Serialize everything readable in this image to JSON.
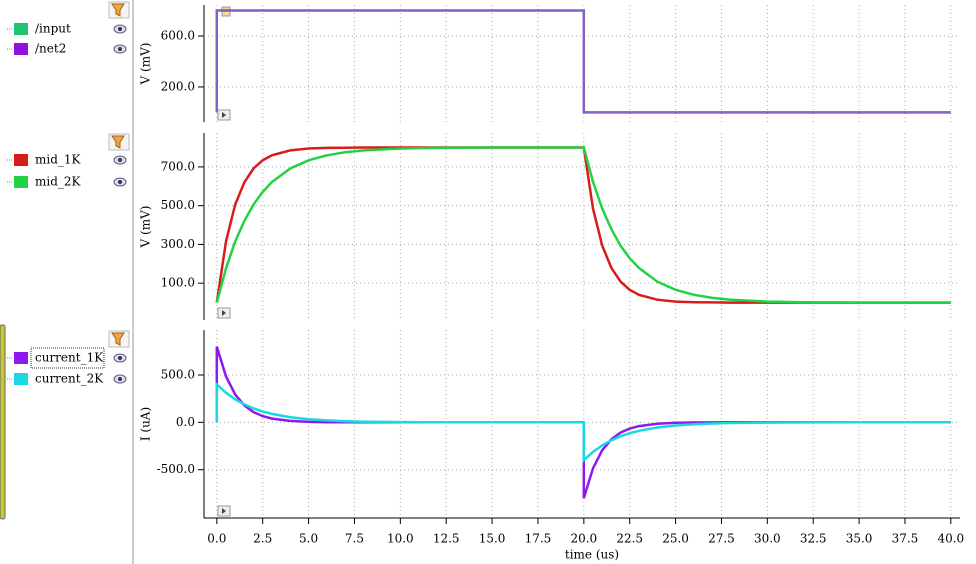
{
  "chart_data": [
    {
      "type": "line",
      "y_label": "V (mV)",
      "x": [
        0,
        0,
        0.5,
        1,
        1.5,
        2,
        2.5,
        3,
        4,
        5,
        6,
        7,
        8,
        10,
        12,
        15,
        20,
        20,
        20.5,
        21,
        21.5,
        22,
        22.5,
        23,
        24,
        25,
        26,
        27,
        28,
        30,
        32,
        35,
        40
      ],
      "xlim": [
        -0.7,
        40.5
      ],
      "ylim": [
        -75,
        843
      ],
      "yticks": [
        {
          "value": 200,
          "label": "200.0"
        },
        {
          "value": 600,
          "label": "600.0"
        }
      ],
      "grid": true,
      "series": [
        {
          "name": "/input",
          "color": "#1fc46e",
          "values": [
            0,
            800,
            800,
            800,
            800,
            800,
            800,
            800,
            800,
            800,
            800,
            800,
            800,
            800,
            800,
            800,
            800,
            0,
            0,
            0,
            0,
            0,
            0,
            0,
            0,
            0,
            0,
            0,
            0,
            0,
            0,
            0,
            0
          ]
        },
        {
          "name": "/net2",
          "color": "#9010e0",
          "values": [
            0,
            800,
            800,
            800,
            800,
            800,
            800,
            800,
            800,
            800,
            800,
            800,
            800,
            800,
            800,
            800,
            800,
            0,
            0,
            0,
            0,
            0,
            0,
            0,
            0,
            0,
            0,
            0,
            0,
            0,
            0,
            0,
            0
          ]
        }
      ]
    },
    {
      "type": "line",
      "y_label": "V (mV)",
      "x": [
        0,
        0,
        0.5,
        1,
        1.5,
        2,
        2.5,
        3,
        4,
        5,
        6,
        7,
        8,
        10,
        12,
        15,
        20,
        20,
        20.5,
        21,
        21.5,
        22,
        22.5,
        23,
        24,
        25,
        26,
        27,
        28,
        30,
        32,
        35,
        40
      ],
      "xlim": [
        -0.7,
        40.5
      ],
      "ylim": [
        -90,
        875
      ],
      "yticks": [
        {
          "value": 100,
          "label": "100.0"
        },
        {
          "value": 300,
          "label": "300.0"
        },
        {
          "value": 500,
          "label": "500.0"
        },
        {
          "value": 700,
          "label": "700.0"
        }
      ],
      "grid": true,
      "series": [
        {
          "name": "mid_1K",
          "color": "#d81c1c",
          "values": [
            0,
            0,
            315,
            506,
            621,
            692,
            734,
            760,
            785,
            795,
            798,
            799,
            800,
            800,
            800,
            800,
            800,
            800,
            485,
            294,
            179,
            108,
            66,
            40,
            15,
            5,
            2,
            1,
            0,
            0,
            0,
            0,
            0
          ]
        },
        {
          "name": "mid_2K",
          "color": "#22d244",
          "values": [
            0,
            0,
            177,
            315,
            422,
            506,
            571,
            622,
            692,
            734,
            760,
            776,
            785,
            795,
            798,
            800,
            800,
            800,
            623,
            485,
            378,
            294,
            229,
            179,
            108,
            66,
            40,
            24,
            15,
            5,
            2,
            0,
            0
          ]
        }
      ]
    },
    {
      "type": "line",
      "y_label": "I (uA)",
      "x_label": "time (us)",
      "x": [
        0,
        0,
        0.5,
        1,
        1.5,
        2,
        2.5,
        3,
        4,
        5,
        6,
        7,
        8,
        10,
        12,
        15,
        20,
        20,
        20.5,
        21,
        21.5,
        22,
        22.5,
        23,
        24,
        25,
        26,
        27,
        28,
        30,
        32,
        35,
        40
      ],
      "xlim": [
        -0.7,
        40.5
      ],
      "ylim": [
        -1010,
        975
      ],
      "xticks": [
        {
          "value": 0,
          "label": "0.0"
        },
        {
          "value": 2.5,
          "label": "2.5"
        },
        {
          "value": 5,
          "label": "5.0"
        },
        {
          "value": 7.5,
          "label": "7.5"
        },
        {
          "value": 10,
          "label": "10.0"
        },
        {
          "value": 12.5,
          "label": "12.5"
        },
        {
          "value": 15,
          "label": "15.0"
        },
        {
          "value": 17.5,
          "label": "17.5"
        },
        {
          "value": 20,
          "label": "20.0"
        },
        {
          "value": 22.5,
          "label": "22.5"
        },
        {
          "value": 25,
          "label": "25.0"
        },
        {
          "value": 27.5,
          "label": "27.5"
        },
        {
          "value": 30,
          "label": "30.0"
        },
        {
          "value": 32.5,
          "label": "32.5"
        },
        {
          "value": 35,
          "label": "35.0"
        },
        {
          "value": 37.5,
          "label": "37.5"
        },
        {
          "value": 40,
          "label": "40.0"
        }
      ],
      "yticks": [
        {
          "value": -500,
          "label": "-500.0"
        },
        {
          "value": 0,
          "label": "0.0"
        },
        {
          "value": 500,
          "label": "500.0"
        }
      ],
      "grid": true,
      "series": [
        {
          "name": "current_1K",
          "color": "#8e18f0",
          "values": [
            0,
            800,
            485,
            294,
            179,
            108,
            66,
            40,
            15,
            5,
            2,
            1,
            0,
            0,
            0,
            0,
            0,
            -800,
            -485,
            -294,
            -179,
            -108,
            -66,
            -40,
            -15,
            -5,
            -2,
            -1,
            0,
            0,
            0,
            0,
            0
          ]
        },
        {
          "name": "current_2K",
          "color": "#18d8e0",
          "values": [
            0,
            400,
            312,
            243,
            189,
            147,
            115,
            89,
            54,
            33,
            20,
            12,
            7,
            3,
            1,
            0,
            0,
            -400,
            -312,
            -243,
            -189,
            -147,
            -115,
            -89,
            -54,
            -33,
            -20,
            -12,
            -7,
            -3,
            -1,
            0,
            0
          ]
        }
      ]
    }
  ]
}
